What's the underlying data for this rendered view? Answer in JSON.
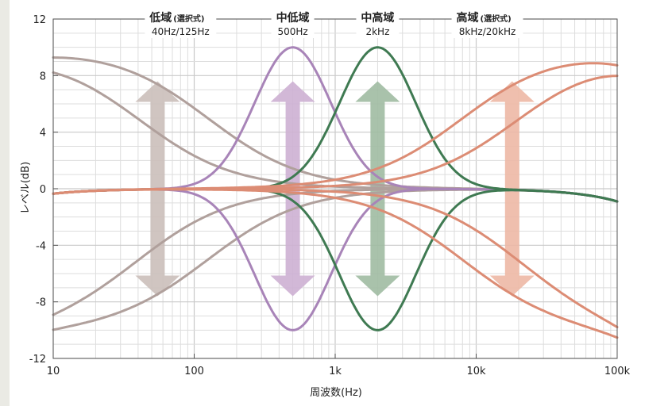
{
  "chart_data": {
    "type": "line",
    "title": "",
    "xlabel": "周波数(Hz)",
    "ylabel": "レベル(dB)",
    "xscale": "log",
    "xlim": [
      10,
      100000
    ],
    "ylim": [
      -12,
      12
    ],
    "x_ticks": [
      {
        "value": 10,
        "label": "10"
      },
      {
        "value": 100,
        "label": "100"
      },
      {
        "value": 1000,
        "label": "1k"
      },
      {
        "value": 10000,
        "label": "10k"
      },
      {
        "value": 100000,
        "label": "100k"
      }
    ],
    "y_ticks": [
      {
        "value": 12,
        "label": "12"
      },
      {
        "value": 8,
        "label": "8"
      },
      {
        "value": 4,
        "label": "4"
      },
      {
        "value": 0,
        "label": "0"
      },
      {
        "value": -4,
        "label": "-4"
      },
      {
        "value": -8,
        "label": "-8"
      },
      {
        "value": -12,
        "label": "-12"
      }
    ],
    "grid": true,
    "legend": "none",
    "bands": [
      {
        "title": "低域",
        "note": "(選択式)",
        "sub": "40Hz/125Hz",
        "label_x": 80,
        "arrow_x": 55,
        "color": "#cbbfba"
      },
      {
        "title": "中低域",
        "note": "",
        "sub": "500Hz",
        "label_x": 500,
        "arrow_x": 500,
        "color": "#cdb0d3"
      },
      {
        "title": "中高域",
        "note": "",
        "sub": "2kHz",
        "label_x": 2000,
        "arrow_x": 2000,
        "color": "#a0bba2"
      },
      {
        "title": "高域",
        "note": "(選択式)",
        "sub": "8kHz/20kHz",
        "label_x": 12000,
        "arrow_x": 18000,
        "color": "#edb8a5"
      }
    ],
    "arrow_range": [
      -7.6,
      7.6
    ],
    "series": [
      {
        "kind": "lowshelf",
        "fc": 40,
        "gain": 10,
        "color": "#b0a09c"
      },
      {
        "kind": "lowshelf",
        "fc": 125,
        "gain": 10,
        "color": "#b0a09c"
      },
      {
        "kind": "lowshelf",
        "fc": 40,
        "gain": -10,
        "color": "#b0a09c"
      },
      {
        "kind": "lowshelf",
        "fc": 125,
        "gain": -10,
        "color": "#b0a09c"
      },
      {
        "kind": "peak",
        "fc": 500,
        "gain": 10,
        "color": "#a884b8"
      },
      {
        "kind": "peak",
        "fc": 500,
        "gain": -10,
        "color": "#a884b8"
      },
      {
        "kind": "peak",
        "fc": 2000,
        "gain": 10,
        "color": "#3f7a52"
      },
      {
        "kind": "peak",
        "fc": 2000,
        "gain": -10,
        "color": "#3f7a52"
      },
      {
        "kind": "highshelf",
        "fc": 8000,
        "gain": 10,
        "color": "#dc8c74"
      },
      {
        "kind": "highshelf",
        "fc": 20000,
        "gain": 10,
        "color": "#dc8c74"
      },
      {
        "kind": "highshelf",
        "fc": 8000,
        "gain": -10,
        "color": "#dc8c74"
      },
      {
        "kind": "highshelf",
        "fc": 20000,
        "gain": -10,
        "color": "#dc8c74"
      }
    ]
  }
}
